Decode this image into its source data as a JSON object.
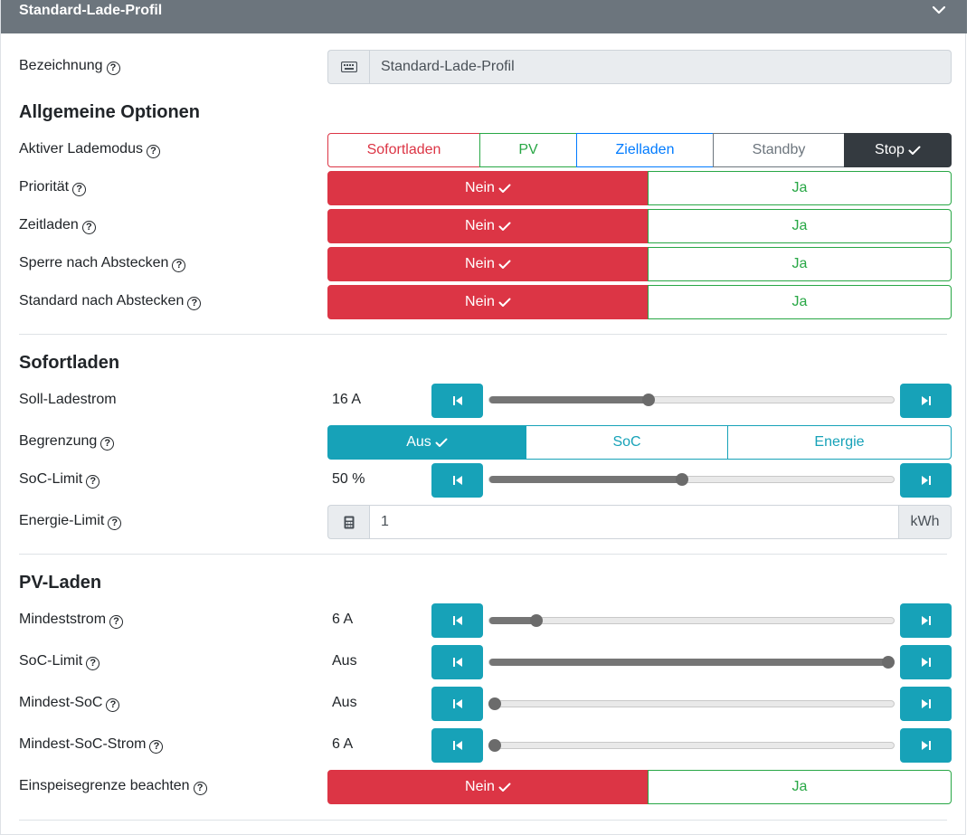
{
  "header": {
    "title": "Standard-Lade-Profil"
  },
  "bezeichnung": {
    "label": "Bezeichnung",
    "value": "Standard-Lade-Profil"
  },
  "allgemein": {
    "title": "Allgemeine Optionen",
    "lademodus": {
      "label": "Aktiver Lademodus",
      "options": [
        "Sofortladen",
        "PV",
        "Zielladen",
        "Standby",
        "Stop"
      ],
      "selected": "Stop"
    },
    "toggles": [
      {
        "label": "Priorität",
        "no": "Nein",
        "yes": "Ja",
        "selected": "Nein"
      },
      {
        "label": "Zeitladen",
        "no": "Nein",
        "yes": "Ja",
        "selected": "Nein"
      },
      {
        "label": "Sperre nach Abstecken",
        "no": "Nein",
        "yes": "Ja",
        "selected": "Nein"
      },
      {
        "label": "Standard nach Abstecken",
        "no": "Nein",
        "yes": "Ja",
        "selected": "Nein"
      }
    ]
  },
  "sofortladen": {
    "title": "Sofortladen",
    "soll_ladestrom": {
      "label": "Soll-Ladestrom",
      "value_text": "16 A",
      "fraction": 0.39
    },
    "begrenzung": {
      "label": "Begrenzung",
      "options": [
        "Aus",
        "SoC",
        "Energie"
      ],
      "selected": "Aus"
    },
    "soc_limit": {
      "label": "SoC-Limit",
      "value_text": "50 %",
      "fraction": 0.475
    },
    "energie_limit": {
      "label": "Energie-Limit",
      "value": "1",
      "unit": "kWh"
    }
  },
  "pvladen": {
    "title": "PV-Laden",
    "sliders": [
      {
        "label": "Mindeststrom",
        "value_text": "6 A",
        "fraction": 0.105
      },
      {
        "label": "SoC-Limit",
        "value_text": "Aus",
        "fraction": 1.0
      },
      {
        "label": "Mindest-SoC",
        "value_text": "Aus",
        "fraction": 0.0
      },
      {
        "label": "Mindest-SoC-Strom",
        "value_text": "6 A",
        "fraction": 0.0
      }
    ],
    "einspeise": {
      "label": "Einspeisegrenze beachten",
      "no": "Nein",
      "yes": "Ja",
      "selected": "Nein"
    }
  },
  "colors": {
    "header": "#6c757d",
    "danger": "#dc3545",
    "success": "#28a745",
    "primary": "#007bff",
    "secondary": "#6c757d",
    "dark": "#343a40",
    "info": "#17a2b8"
  }
}
